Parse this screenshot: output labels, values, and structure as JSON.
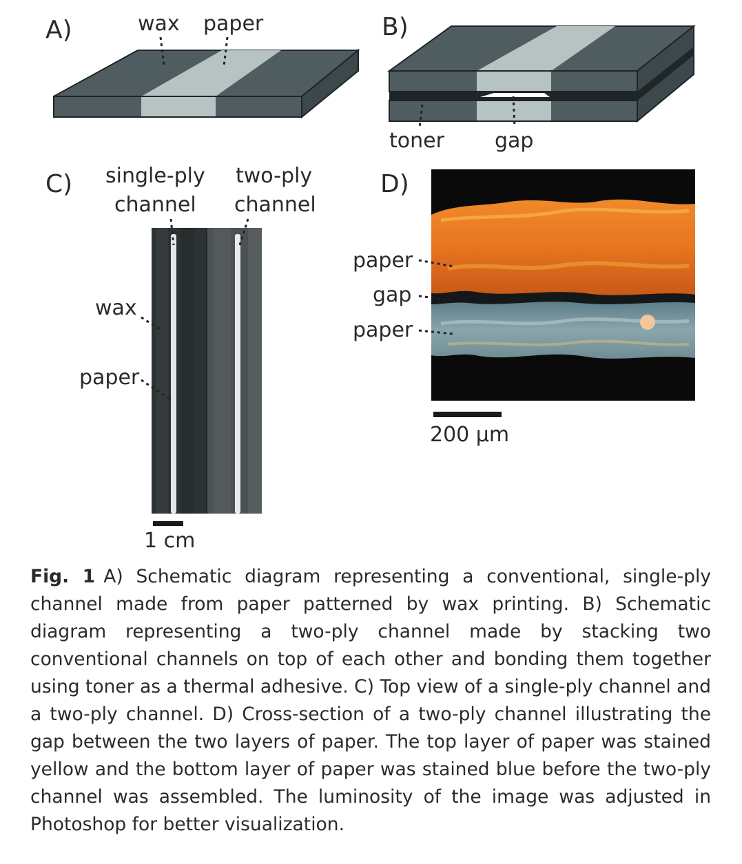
{
  "panels": {
    "a": {
      "letter": "A)",
      "labels": {
        "wax": "wax",
        "paper": "paper"
      }
    },
    "b": {
      "letter": "B)",
      "labels": {
        "toner": "toner",
        "gap": "gap"
      }
    },
    "c": {
      "letter": "C)",
      "labels": {
        "single_ply_1": "single-ply",
        "single_ply_2": "channel",
        "two_ply_1": "two-ply",
        "two_ply_2": "channel",
        "wax": "wax",
        "paper": "paper"
      },
      "scale_bar": "1 cm"
    },
    "d": {
      "letter": "D)",
      "labels": {
        "paper_top": "paper",
        "gap": "gap",
        "paper_bottom": "paper"
      },
      "scale_bar": "200 µm"
    }
  },
  "caption": {
    "label": "Fig. 1",
    "text": "A) Schematic diagram representing a conventional, single-ply channel made from paper patterned by wax printing. B) Schematic diagram representing a two-ply channel made by stacking two conventional channels on top of each other and bonding them together using toner as a thermal adhesive. C) Top view of a single-ply channel and a two-ply channel. D) Cross-section of a two-ply channel illustrating the gap between the two layers of paper. The top layer of paper was stained yellow and the bottom layer of paper was stained blue before the two-ply channel was assembled. The luminosity of the image was adjusted in Photoshop for better visualization."
  },
  "colors": {
    "wax": "#4f5d61",
    "wax_dark": "#3d484c",
    "paper_channel": "#b7c3c2",
    "toner": "#1f2628",
    "stain_top": "#e0782a",
    "stain_bottom": "#7f9aa3"
  }
}
